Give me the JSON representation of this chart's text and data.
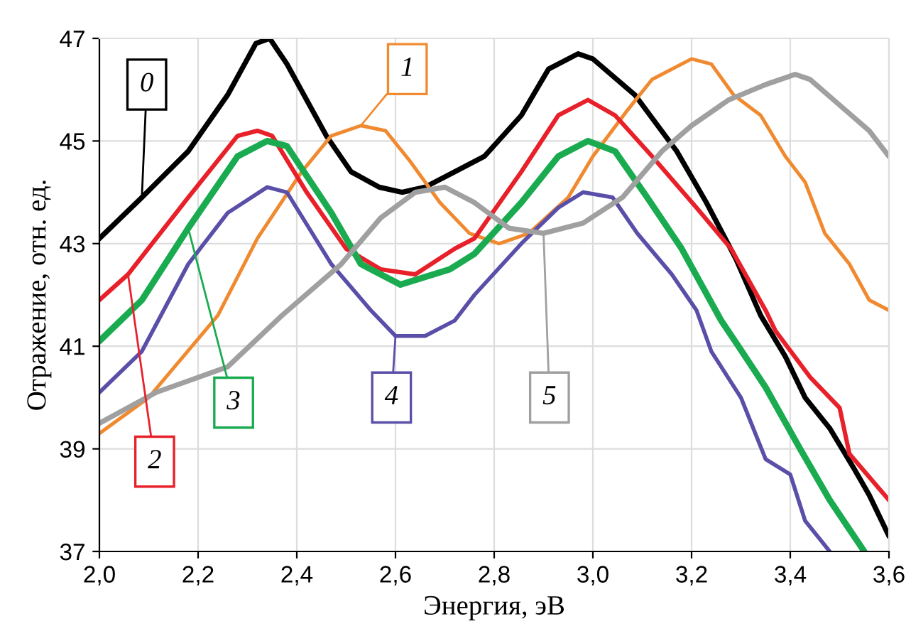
{
  "chart_data": {
    "type": "line",
    "xlabel": "Энергия, эВ",
    "ylabel": "Отражение, отн. ед.",
    "xlim": [
      2.0,
      3.6
    ],
    "ylim": [
      37,
      47
    ],
    "xticks": [
      {
        "value": 2.0,
        "label": "2,0"
      },
      {
        "value": 2.2,
        "label": "2,2"
      },
      {
        "value": 2.4,
        "label": "2,4"
      },
      {
        "value": 2.6,
        "label": "2,6"
      },
      {
        "value": 2.8,
        "label": "2,8"
      },
      {
        "value": 3.0,
        "label": "3,0"
      },
      {
        "value": 3.2,
        "label": "3,2"
      },
      {
        "value": 3.4,
        "label": "3,4"
      },
      {
        "value": 3.6,
        "label": "3,6"
      }
    ],
    "yticks": [
      37,
      39,
      41,
      43,
      45,
      47
    ],
    "grid": true,
    "line_style": "solid",
    "series": [
      {
        "name": "0",
        "color": "#000000",
        "x": [
          2.0,
          2.086,
          2.18,
          2.26,
          2.317,
          2.345,
          2.38,
          2.46,
          2.51,
          2.567,
          2.613,
          2.66,
          2.72,
          2.78,
          2.855,
          2.91,
          2.97,
          3.0,
          3.085,
          3.17,
          3.23,
          3.29,
          3.34,
          3.39,
          3.43,
          3.48,
          3.53,
          3.56,
          3.6
        ],
        "values": [
          43.1,
          43.9,
          44.8,
          45.9,
          46.9,
          47.0,
          46.5,
          45.1,
          44.4,
          44.1,
          44.0,
          44.1,
          44.4,
          44.7,
          45.5,
          46.4,
          46.7,
          46.6,
          45.9,
          44.8,
          43.8,
          42.7,
          41.6,
          40.8,
          40.0,
          39.4,
          38.6,
          38.1,
          37.3
        ]
      },
      {
        "name": "1",
        "color": "#f08a30",
        "x": [
          2.0,
          2.1,
          2.24,
          2.32,
          2.41,
          2.47,
          2.53,
          2.58,
          2.63,
          2.69,
          2.75,
          2.81,
          2.87,
          2.95,
          3.0,
          3.07,
          3.12,
          3.2,
          3.24,
          3.285,
          3.34,
          3.39,
          3.43,
          3.47,
          3.52,
          3.56,
          3.6
        ],
        "values": [
          39.3,
          40.0,
          41.6,
          43.1,
          44.4,
          45.1,
          45.3,
          45.2,
          44.6,
          43.8,
          43.2,
          43.0,
          43.2,
          43.9,
          44.7,
          45.6,
          46.2,
          46.6,
          46.5,
          45.9,
          45.5,
          44.7,
          44.2,
          43.2,
          42.6,
          41.9,
          41.7
        ]
      },
      {
        "name": "2",
        "color": "#e8202a",
        "x": [
          2.0,
          2.058,
          2.18,
          2.28,
          2.32,
          2.35,
          2.42,
          2.5,
          2.57,
          2.64,
          2.72,
          2.76,
          2.855,
          2.93,
          2.99,
          3.045,
          3.12,
          3.21,
          3.28,
          3.35,
          3.37,
          3.44,
          3.5,
          3.52,
          3.6
        ],
        "values": [
          41.9,
          42.4,
          43.9,
          45.1,
          45.2,
          45.1,
          44.0,
          42.9,
          42.5,
          42.4,
          42.9,
          43.1,
          44.4,
          45.5,
          45.8,
          45.5,
          44.7,
          43.7,
          42.9,
          41.7,
          41.3,
          40.4,
          39.8,
          38.9,
          38.0
        ]
      },
      {
        "name": "3",
        "color": "#1aab50",
        "x": [
          2.0,
          2.086,
          2.18,
          2.28,
          2.34,
          2.38,
          2.47,
          2.53,
          2.61,
          2.71,
          2.76,
          2.855,
          2.93,
          2.99,
          3.045,
          3.11,
          3.18,
          3.26,
          3.295,
          3.35,
          3.42,
          3.48,
          3.55
        ],
        "values": [
          41.1,
          41.9,
          43.3,
          44.7,
          45.0,
          44.9,
          43.6,
          42.6,
          42.2,
          42.5,
          42.8,
          43.8,
          44.7,
          45.0,
          44.8,
          43.9,
          42.9,
          41.5,
          41.0,
          40.2,
          39.0,
          38.0,
          37.0
        ]
      },
      {
        "name": "4",
        "color": "#5a4fa8",
        "x": [
          2.0,
          2.086,
          2.18,
          2.26,
          2.34,
          2.38,
          2.47,
          2.55,
          2.6,
          2.66,
          2.72,
          2.76,
          2.855,
          2.93,
          2.98,
          3.04,
          3.09,
          3.16,
          3.21,
          3.24,
          3.3,
          3.35,
          3.4,
          3.43,
          3.48
        ],
        "values": [
          40.1,
          40.9,
          42.6,
          43.6,
          44.1,
          44.0,
          42.6,
          41.7,
          41.2,
          41.2,
          41.5,
          42.0,
          43.0,
          43.7,
          44.0,
          43.9,
          43.2,
          42.4,
          41.7,
          40.9,
          40.0,
          38.8,
          38.5,
          37.6,
          37.0
        ]
      },
      {
        "name": "5",
        "color": "#a0a0a0",
        "x": [
          2.0,
          2.115,
          2.26,
          2.37,
          2.49,
          2.57,
          2.64,
          2.7,
          2.76,
          2.83,
          2.9,
          2.98,
          3.06,
          3.14,
          3.2,
          3.275,
          3.35,
          3.41,
          3.44,
          3.5,
          3.56,
          3.6
        ],
        "values": [
          39.5,
          40.1,
          40.6,
          41.6,
          42.6,
          43.5,
          44.0,
          44.1,
          43.8,
          43.3,
          43.2,
          43.4,
          43.9,
          44.8,
          45.3,
          45.8,
          46.1,
          46.3,
          46.2,
          45.7,
          45.2,
          44.7
        ]
      }
    ]
  }
}
